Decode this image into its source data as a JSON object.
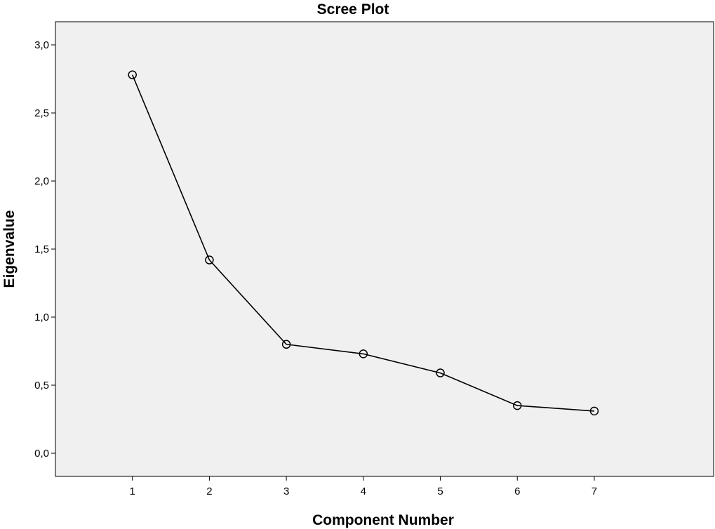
{
  "chart_data": {
    "type": "line",
    "title": "Scree Plot",
    "xlabel": "Component Number",
    "ylabel": "Eigenvalue",
    "x": [
      1,
      2,
      3,
      4,
      5,
      6,
      7
    ],
    "series": [
      {
        "values": [
          2.78,
          1.42,
          0.8,
          0.73,
          0.59,
          0.35,
          0.31
        ]
      }
    ],
    "xlim": [
      0.0,
      8.55
    ],
    "ylim": [
      -0.17,
      3.17
    ],
    "x_ticks": [
      "1",
      "2",
      "3",
      "4",
      "5",
      "6",
      "7"
    ],
    "y_tick_values": [
      0.0,
      0.5,
      1.0,
      1.5,
      2.0,
      2.5,
      3.0
    ],
    "y_ticks": [
      "0,0",
      "0,5",
      "1,0",
      "1,5",
      "2,0",
      "2,5",
      "3,0"
    ],
    "grid": false,
    "legend": "none",
    "marker": "open-circle",
    "colors": {
      "plot_background": "#f0f0f0",
      "line": "#000000",
      "marker_stroke": "#000000"
    }
  }
}
